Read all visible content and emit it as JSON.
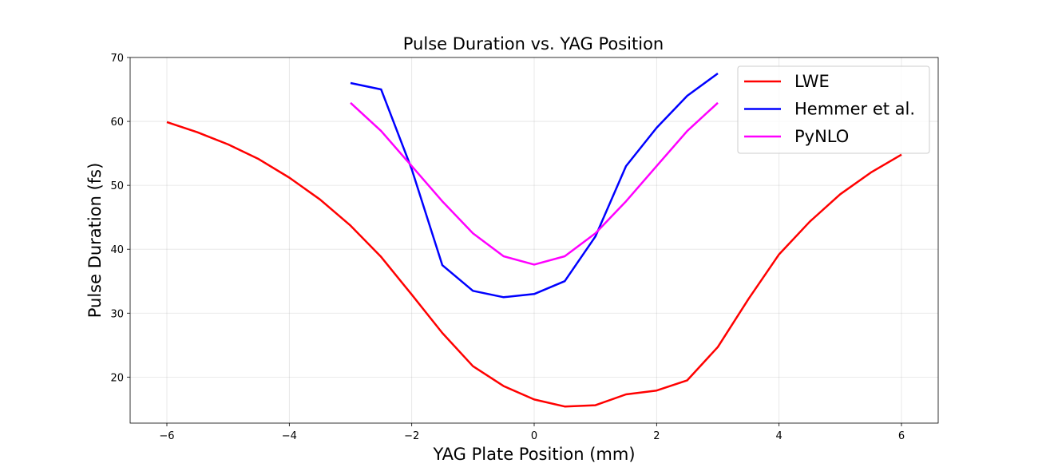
{
  "chart_data": {
    "type": "line",
    "title": "Pulse Duration vs. YAG Position",
    "xlabel": "YAG Plate Position (mm)",
    "ylabel": "Pulse Duration (fs)",
    "xlim": [
      -6.6,
      6.6
    ],
    "ylim": [
      12.8,
      70
    ],
    "xticks": [
      -6,
      -4,
      -2,
      0,
      2,
      4,
      6
    ],
    "xtick_labels": [
      "−6",
      "−4",
      "−2",
      "0",
      "2",
      "4",
      "6"
    ],
    "yticks": [
      20,
      30,
      40,
      50,
      60,
      70
    ],
    "ytick_labels": [
      "20",
      "30",
      "40",
      "50",
      "60",
      "70"
    ],
    "grid": true,
    "legend_position": "top-right",
    "series": [
      {
        "name": "LWE",
        "color": "#ff0000",
        "x": [
          -6,
          -5.5,
          -5,
          -4.5,
          -4,
          -3.5,
          -3,
          -2.5,
          -2,
          -1.5,
          -1,
          -0.5,
          0,
          0.5,
          1,
          1.5,
          2,
          2.5,
          3,
          3.5,
          4,
          4.5,
          5,
          5.5,
          6
        ],
        "y": [
          59.9,
          58.3,
          56.4,
          54.1,
          51.2,
          47.8,
          43.7,
          38.8,
          32.9,
          26.9,
          21.7,
          18.6,
          16.5,
          15.4,
          15.6,
          17.3,
          17.9,
          19.5,
          24.7,
          32.2,
          39.2,
          44.3,
          48.6,
          52.0,
          54.8
        ]
      },
      {
        "name": "Hemmer et al.",
        "color": "#0000ff",
        "x": [
          -3,
          -2.5,
          -2,
          -1.5,
          -1,
          -0.5,
          0,
          0.5,
          1,
          1.5,
          2,
          2.5,
          3
        ],
        "y": [
          66.0,
          65.0,
          52.5,
          37.5,
          33.5,
          32.5,
          33.0,
          35.0,
          42.0,
          53.0,
          59.0,
          64.0,
          67.5
        ]
      },
      {
        "name": "PyNLO",
        "color": "#ff00ff",
        "x": [
          -3,
          -2.5,
          -2,
          -1.5,
          -1,
          -0.5,
          0,
          0.5,
          1,
          1.5,
          2,
          2.5,
          3
        ],
        "y": [
          62.9,
          58.5,
          53.0,
          47.5,
          42.5,
          38.9,
          37.6,
          38.9,
          42.5,
          47.5,
          53.0,
          58.5,
          62.9
        ]
      }
    ]
  }
}
